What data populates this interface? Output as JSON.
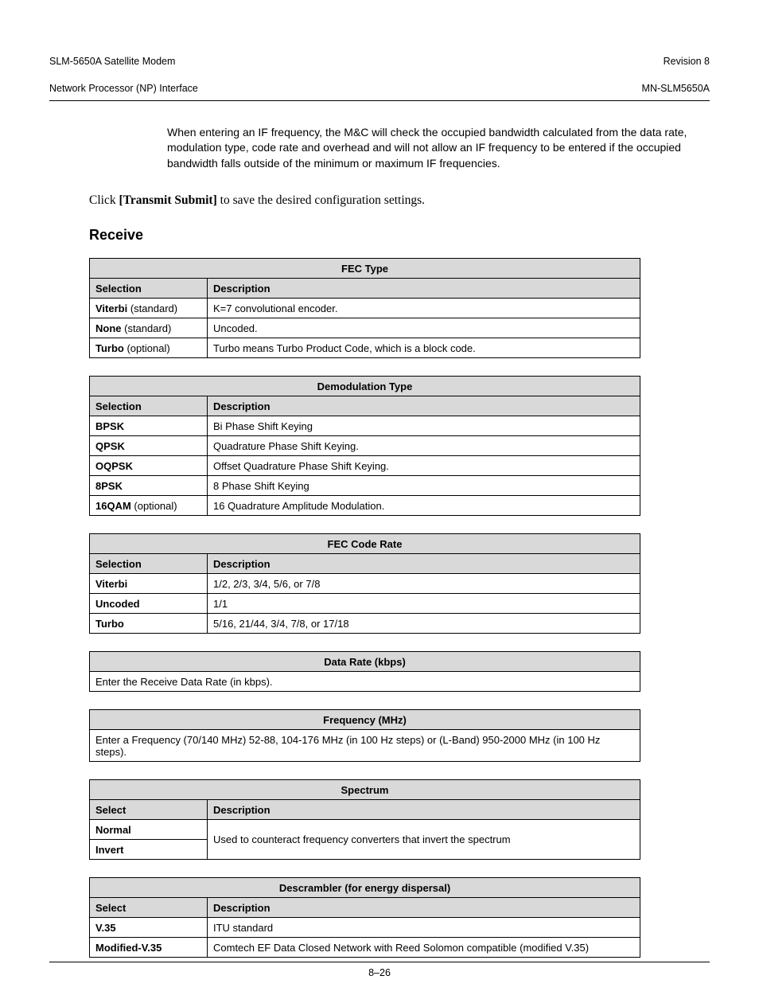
{
  "header": {
    "left_line1": "SLM-5650A Satellite Modem",
    "left_line2": "Network Processor (NP) Interface",
    "right_line1": "Revision 8",
    "right_line2": "MN-SLM5650A"
  },
  "intro_paragraph": "When entering an IF frequency, the M&C will check the occupied bandwidth calculated from the data rate, modulation type, code rate and overhead and will not allow an IF frequency to be entered if the occupied bandwidth falls outside of the minimum or maximum IF frequencies.",
  "click_line": {
    "prefix": "Click ",
    "bold": "[Transmit Submit]",
    "suffix": " to save the desired configuration settings."
  },
  "section_heading": "Receive",
  "col_selection": "Selection",
  "col_select": "Select",
  "col_description": "Description",
  "tables": {
    "fec_type": {
      "title": "FEC Type",
      "rows": [
        {
          "sel": "Viterbi",
          "note": " (standard)",
          "desc": "K=7 convolutional encoder."
        },
        {
          "sel": "None",
          "note": " (standard)",
          "desc": "Uncoded."
        },
        {
          "sel": "Turbo",
          "note": " (optional)",
          "desc": "Turbo means Turbo Product Code, which is a block code."
        }
      ]
    },
    "demod_type": {
      "title": "Demodulation Type",
      "rows": [
        {
          "sel": "BPSK",
          "note": "",
          "desc": "Bi Phase Shift Keying"
        },
        {
          "sel": "QPSK",
          "note": "",
          "desc": "Quadrature Phase Shift Keying."
        },
        {
          "sel": "OQPSK",
          "note": "",
          "desc": "Offset Quadrature Phase Shift Keying."
        },
        {
          "sel": "8PSK",
          "note": "",
          "desc": "8 Phase Shift Keying"
        },
        {
          "sel": "16QAM",
          "note": " (optional)",
          "desc": "16 Quadrature Amplitude Modulation."
        }
      ]
    },
    "fec_code_rate": {
      "title": "FEC Code Rate",
      "rows": [
        {
          "sel": "Viterbi",
          "note": "",
          "desc": "1/2, 2/3, 3/4, 5/6, or 7/8"
        },
        {
          "sel": "Uncoded",
          "note": "",
          "desc": "1/1"
        },
        {
          "sel": "Turbo",
          "note": "",
          "desc": "5/16, 21/44, 3/4, 7/8, or 17/18"
        }
      ]
    },
    "data_rate": {
      "title": "Data Rate (kbps)",
      "desc": "Enter the Receive Data Rate (in kbps)."
    },
    "frequency": {
      "title": "Frequency (MHz)",
      "desc": "Enter a Frequency (70/140 MHz) 52-88, 104-176 MHz (in 100 Hz steps) or (L-Band) 950-2000 MHz (in 100 Hz steps)."
    },
    "spectrum": {
      "title": "Spectrum",
      "rows": [
        {
          "sel": "Normal",
          "note": ""
        },
        {
          "sel": "Invert",
          "note": ""
        }
      ],
      "merged_desc": "Used to counteract frequency converters that invert the spectrum"
    },
    "descrambler": {
      "title": "Descrambler (for energy dispersal)",
      "rows": [
        {
          "sel": "V.35",
          "note": "",
          "desc": "ITU standard"
        },
        {
          "sel": "Modified-V.35",
          "note": "",
          "desc": "Comtech EF Data Closed Network with Reed Solomon compatible (modified V.35)"
        }
      ]
    }
  },
  "page_number": "8–26"
}
